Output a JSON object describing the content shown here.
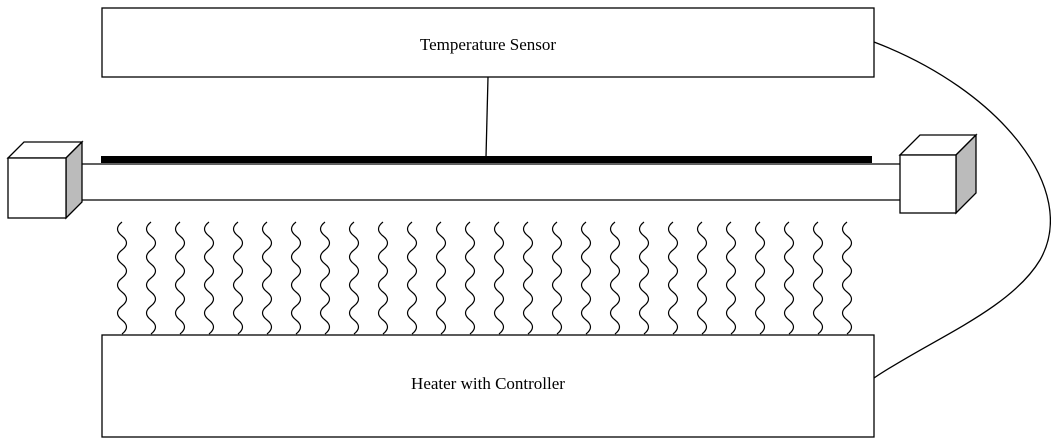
{
  "nodes": [
    {
      "label": "Temperature Sensor"
    },
    {
      "label": "Heater with Controller"
    }
  ]
}
